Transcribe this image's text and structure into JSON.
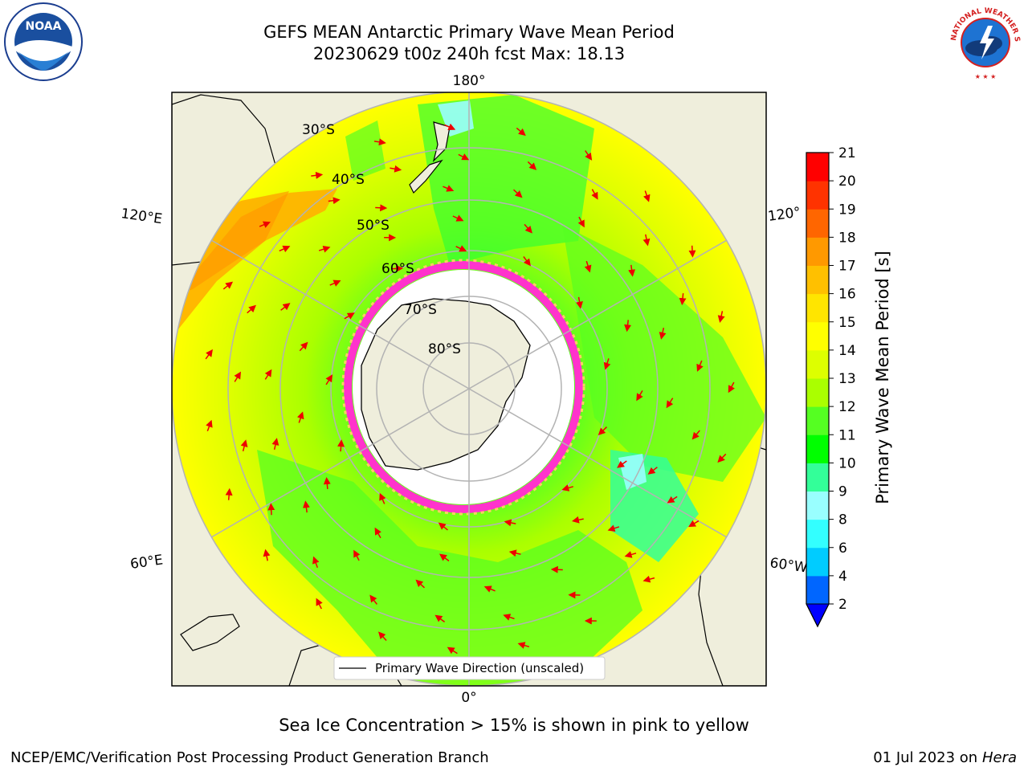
{
  "header": {
    "title_line1": "GEFS MEAN Antarctic Primary Wave Mean Period",
    "title_line2": "20230629 t00z 240h fcst   Max: 18.13"
  },
  "logos": {
    "left": "noaa-logo",
    "right": "national-weather-service-logo",
    "left_text": "NOAA",
    "right_text": "NATIONAL WEATHER SERVICE"
  },
  "map": {
    "projection": "south-polar-stereographic",
    "lon_labels": {
      "top": "180°",
      "bottom": "0°",
      "upper_left": "120°E",
      "lower_left": "60°E",
      "upper_right": "120°",
      "lower_right": "60°W"
    },
    "lat_labels": [
      "30°S",
      "40°S",
      "50°S",
      "60°S",
      "70°S",
      "80°S"
    ],
    "legend_text": "Primary Wave Direction (unscaled)"
  },
  "colorbar": {
    "label": "Primary Wave Mean Period [s]",
    "ticks": [
      "2",
      "4",
      "6",
      "8",
      "9",
      "10",
      "11",
      "12",
      "13",
      "14",
      "15",
      "16",
      "17",
      "18",
      "19",
      "20",
      "21"
    ],
    "colors": [
      "#0066ff",
      "#00ccff",
      "#33ffff",
      "#99ffff",
      "#33ff99",
      "#00ff00",
      "#55ff22",
      "#aaff00",
      "#ddff00",
      "#ffff00",
      "#ffe500",
      "#ffc000",
      "#ff9900",
      "#ff6600",
      "#ff3300",
      "#ff0000"
    ],
    "under_color": "#0000ff"
  },
  "footer": {
    "caption": "Sea Ice Concentration > 15% is shown in pink to yellow",
    "credit": "NCEP/EMC/Verification Post Processing Product Generation Branch",
    "date": "01 Jul 2023 on",
    "machine": "Hera"
  }
}
